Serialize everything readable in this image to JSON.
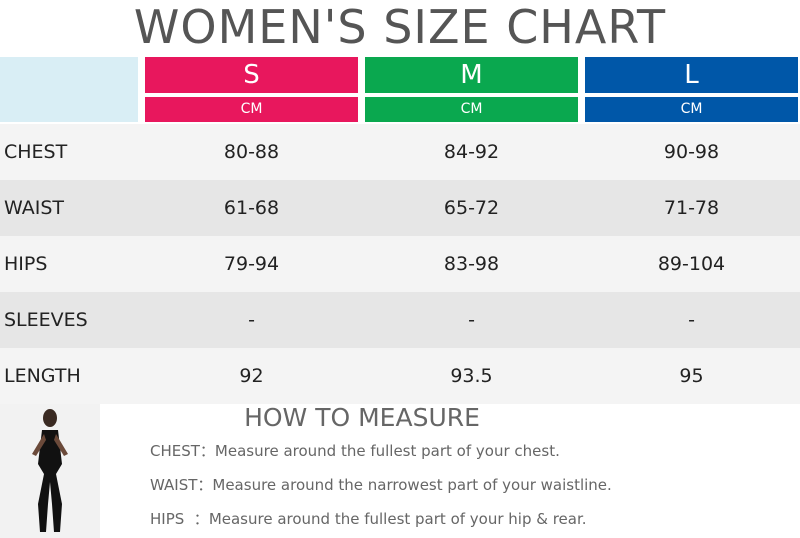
{
  "title": "WOMEN'S SIZE CHART",
  "table": {
    "sizes": [
      "S",
      "M",
      "L"
    ],
    "units": [
      "CM",
      "CM",
      "CM"
    ],
    "rows": [
      [
        "CHEST",
        "80-88",
        "84-92",
        "90-98"
      ],
      [
        "WAIST",
        "61-68",
        "65-72",
        "71-78"
      ],
      [
        "HIPS",
        "79-94",
        "83-98",
        "89-104"
      ],
      [
        "SLEEVES",
        "-",
        "-",
        "-"
      ],
      [
        "LENGTH",
        "92",
        "93.5",
        "95"
      ]
    ]
  },
  "measure": {
    "title": "HOW TO MEASURE",
    "items": [
      {
        "label": "CHEST：",
        "text": "Measure around the fullest part of your chest."
      },
      {
        "label": "WAIST：",
        "text": "Measure around the narrowest part of your waistline."
      },
      {
        "label": "HIPS  ：",
        "text": "Measure around the fullest part of your hip & rear."
      }
    ]
  }
}
